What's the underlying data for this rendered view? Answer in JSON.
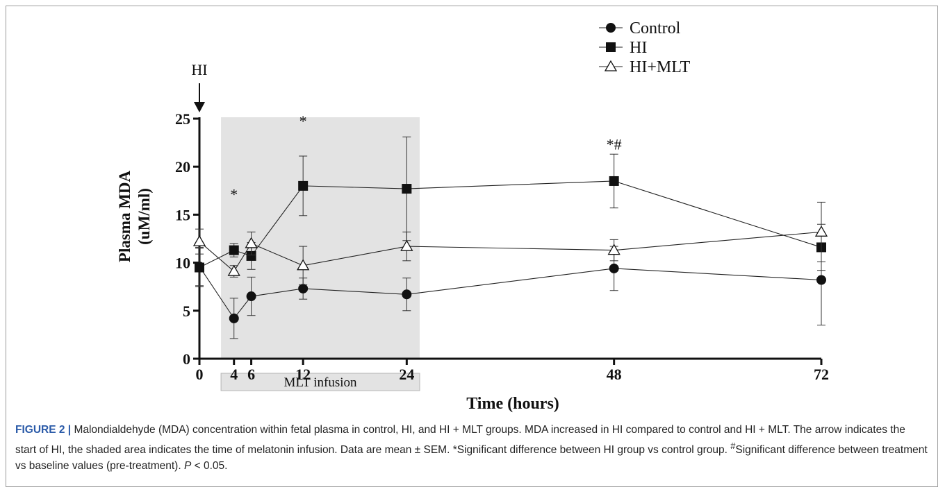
{
  "chart_data": {
    "type": "line",
    "xlabel": "Time (hours)",
    "ylabel": "Plasma MDA (uM/ml)",
    "ylabel_lines": [
      "Plasma MDA",
      "(uM/ml)"
    ],
    "xlim": [
      0,
      72
    ],
    "ylim": [
      0,
      25
    ],
    "x_ticks": [
      0,
      4,
      6,
      12,
      24,
      48,
      72
    ],
    "y_ticks": [
      0,
      5,
      10,
      15,
      20,
      25
    ],
    "grid": false,
    "legend_position": "top-right",
    "series": [
      {
        "name": "Control",
        "marker": "circle",
        "x": [
          0,
          4,
          6,
          12,
          24,
          48,
          72
        ],
        "y": [
          9.6,
          4.2,
          6.5,
          7.3,
          6.7,
          9.4,
          8.2
        ],
        "err": [
          2.0,
          2.1,
          2.0,
          1.1,
          1.7,
          2.3,
          4.7
        ]
      },
      {
        "name": "HI",
        "marker": "square",
        "x": [
          0,
          4,
          6,
          12,
          24,
          48,
          72
        ],
        "y": [
          9.5,
          11.3,
          10.7,
          18.0,
          17.7,
          18.5,
          11.6
        ],
        "err": [
          2.0,
          0.7,
          1.4,
          3.1,
          5.4,
          2.8,
          2.4
        ]
      },
      {
        "name": "HI+MLT",
        "marker": "triangle-open",
        "x": [
          0,
          4,
          6,
          12,
          24,
          48,
          72
        ],
        "y": [
          12.2,
          9.1,
          12.0,
          9.7,
          11.7,
          11.3,
          13.2
        ],
        "err": [
          1.3,
          0.6,
          1.2,
          2.0,
          1.5,
          1.1,
          3.1
        ]
      }
    ],
    "annotations": [
      {
        "text": "HI",
        "x": 0,
        "kind": "arrow-label"
      },
      {
        "text": "*",
        "x": 4,
        "y": 16.6
      },
      {
        "text": "*",
        "x": 12,
        "y": 24.2
      },
      {
        "text": "*#",
        "x": 48,
        "y": 21.8
      },
      {
        "text": "MLT infusion",
        "kind": "shaded-region",
        "x_range": [
          2.5,
          25.5
        ]
      }
    ]
  },
  "caption": {
    "label": "FIGURE 2 |",
    "text1": " Malondialdehyde (MDA) concentration within fetal plasma in control, HI, and HI + MLT groups. MDA increased in HI compared to control and HI + MLT. The arrow indicates the start of HI, the shaded area indicates the time of melatonin infusion. Data are mean ± SEM. *Significant difference between HI group vs control group. ",
    "sup": "#",
    "text2": "Significant difference between treatment vs baseline values (pre-treatment). ",
    "p_symbol": "P",
    "text3": " < 0.05."
  }
}
